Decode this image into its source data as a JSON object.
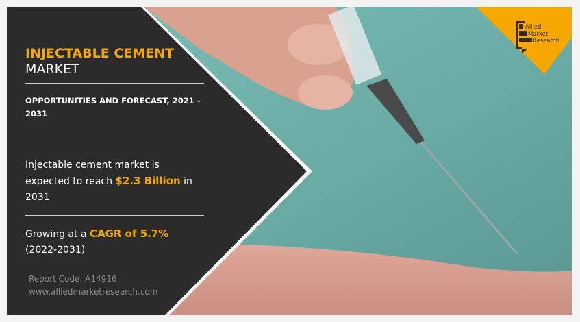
{
  "title": {
    "highlight": "INJECTABLE CEMENT",
    "rest": "MARKET"
  },
  "subtitle": "OPPORTUNITIES AND FORECAST, 2021 - 2031",
  "stat1": {
    "pre": "Injectable cement market is expected to reach ",
    "value": "$2.3 Billion",
    "post": " in 2031"
  },
  "stat2": {
    "pre": "Growing at a ",
    "value": "CAGR of 5.7%",
    "post": " (2022-2031)"
  },
  "footer": {
    "code": "Report Code: A14916,",
    "url": "www.alliedmarketresearch.com"
  },
  "logo": {
    "text": [
      "Allied",
      "Market",
      "Research"
    ]
  },
  "colors": {
    "accent": "#f5a800",
    "panel": "#2b2b2b",
    "photo_bg": "#6fb1ab"
  }
}
